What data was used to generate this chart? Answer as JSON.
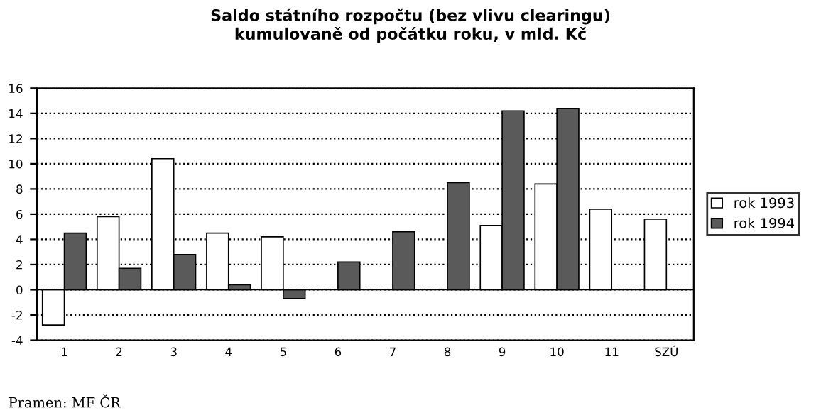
{
  "chart_data": {
    "type": "bar",
    "title": "Saldo státního rozpočtu (bez vlivu clearingu)\nkumulovaně od počátku roku, v mld. Kč",
    "categories": [
      "1",
      "2",
      "3",
      "4",
      "5",
      "6",
      "7",
      "8",
      "9",
      "10",
      "11",
      "SZÚ"
    ],
    "series": [
      {
        "name": "rok 1993",
        "color": "#ffffff",
        "values": [
          -2.8,
          5.8,
          10.4,
          4.5,
          4.2,
          null,
          null,
          null,
          5.1,
          8.4,
          6.4,
          5.6
        ]
      },
      {
        "name": "rok 1994",
        "color": "#5a5a5a",
        "values": [
          4.5,
          1.7,
          2.8,
          0.4,
          -0.7,
          2.2,
          4.6,
          8.5,
          14.2,
          14.4,
          null,
          null
        ]
      }
    ],
    "ylim": [
      -4,
      16
    ],
    "yticks": [
      -4,
      -2,
      0,
      2,
      4,
      6,
      8,
      10,
      12,
      14,
      16
    ],
    "grid": "y",
    "legend": "right",
    "line_style": "dotted",
    "annotations": [
      "Pramen: MF ČR"
    ]
  }
}
